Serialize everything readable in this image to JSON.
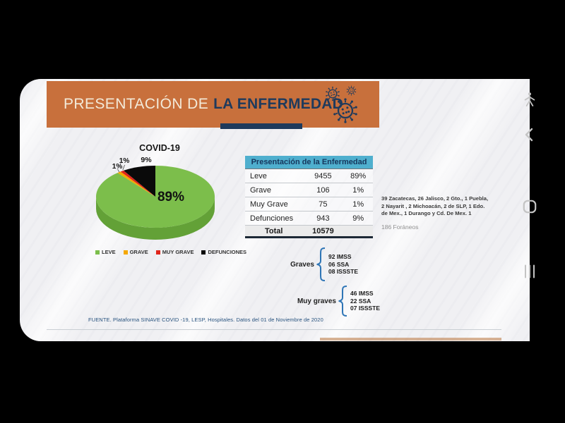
{
  "banner": {
    "title_regular": "PRESENTACIÓN DE",
    "title_bold": "LA ENFERMEDAD"
  },
  "chart_data": {
    "type": "pie",
    "style": "3d-pie",
    "title": "COVID-19",
    "categories": [
      "LEVE",
      "GRAVE",
      "MUY GRAVE",
      "DEFUNCIONES"
    ],
    "values": [
      89,
      1,
      1,
      9
    ],
    "counts": [
      9455,
      106,
      75,
      943
    ],
    "total": 10579,
    "slice_labels": [
      "89%",
      "1%",
      "1%",
      "9%"
    ],
    "colors": [
      "#7cbe4b",
      "#f5a800",
      "#e0251b",
      "#0a0a0a"
    ],
    "side_color": "#63a137",
    "legend_position": "bottom",
    "start_angle_deg": 0,
    "direction": "clockwise"
  },
  "table": {
    "title": "Presentación de la Enfermedad",
    "rows": [
      {
        "label": "Leve",
        "value": "9455",
        "pct": "89%"
      },
      {
        "label": "Grave",
        "value": "106",
        "pct": "1%"
      },
      {
        "label": "Muy Grave",
        "value": "75",
        "pct": "1%"
      },
      {
        "label": "Defunciones",
        "value": "943",
        "pct": "9%"
      }
    ],
    "total_label": "Total",
    "total_value": "10579"
  },
  "notes": {
    "states_lines": [
      "39 Zacatecas, 26 Jalisco, 2 Gto., 1 Puebla,",
      "2 Nayarit , 2 Michoacán, 2 de SLP, 1 Edo.",
      "de Mex., 1 Durango y Cd. De Mex. 1"
    ],
    "foraneos": "186 Foráneos"
  },
  "graves": {
    "label": "Graves",
    "items": [
      "92 IMSS",
      "06 SSA",
      "08 ISSSTE"
    ]
  },
  "muy_graves": {
    "label": "Muy graves",
    "items": [
      "46 IMSS",
      "22 SSA",
      "07 ISSSTE"
    ]
  },
  "footer": {
    "source": "FUENTE. Plataforma SINAVE COVID -19, LESP, Hospitales. Datos del 01 de Noviembre de 2020"
  },
  "colors": {
    "banner_bg": "#c8703c",
    "accent_navy": "#1e3a5c",
    "table_header_bg": "#4fafce",
    "brace_blue": "#2e75b6"
  },
  "android_nav": {
    "icons": [
      "accessibility",
      "back",
      "home",
      "recents"
    ]
  }
}
